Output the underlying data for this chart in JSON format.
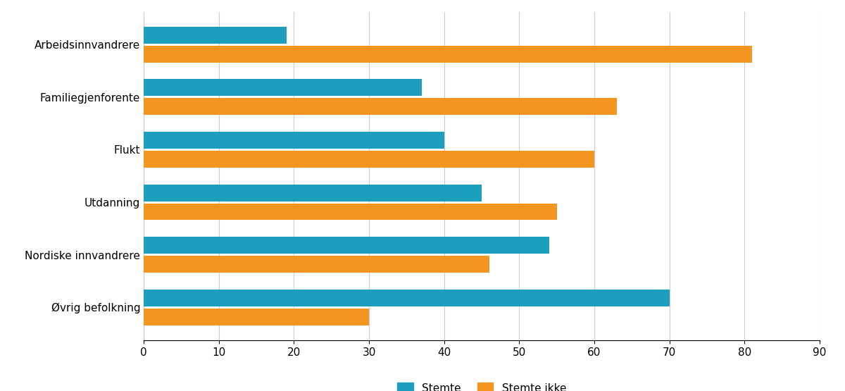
{
  "categories": [
    "Arbeidsinnvandrere",
    "Familiegjenforente",
    "Flukt",
    "Utdanning",
    "Nordiske innvandrere",
    "Øvrig befolkning"
  ],
  "stemte": [
    19,
    37,
    40,
    45,
    54,
    70
  ],
  "stemte_ikke": [
    81,
    63,
    60,
    55,
    46,
    30
  ],
  "color_stemte": "#1d9ebf",
  "color_stemte_ikke": "#f5941e",
  "xlim": [
    0,
    90
  ],
  "xticks": [
    0,
    10,
    20,
    30,
    40,
    50,
    60,
    70,
    80,
    90
  ],
  "legend_stemte": "Stemte",
  "legend_stemte_ikke": "Stemte ikke",
  "bar_height": 0.32,
  "bar_gap": 0.04,
  "figsize": [
    12.0,
    5.55
  ],
  "dpi": 100,
  "grid_color": "#cccccc",
  "background_color": "#ffffff",
  "tick_fontsize": 11,
  "label_fontsize": 11,
  "legend_fontsize": 11
}
